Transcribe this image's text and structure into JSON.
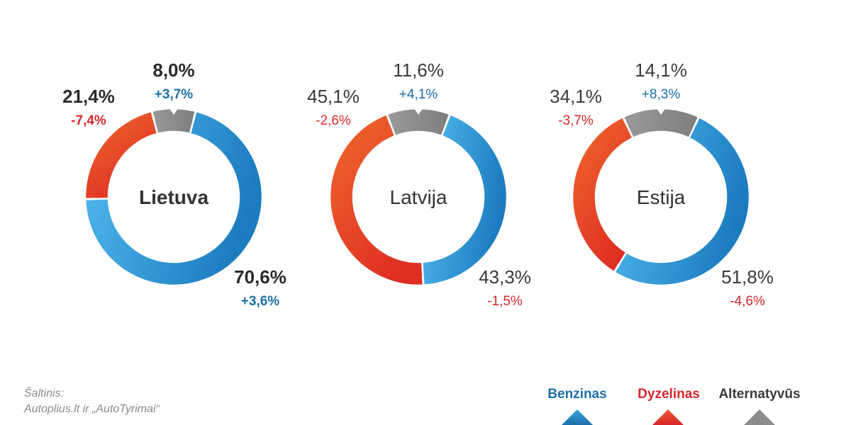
{
  "chart_data": [
    {
      "type": "pie",
      "title": "Lietuva",
      "series": [
        {
          "name": "Benzinas",
          "value": 70.6,
          "label": "70,6%",
          "change": "+3,6%"
        },
        {
          "name": "Dyzelinas",
          "value": 21.4,
          "label": "21,4%",
          "change": "-7,4%"
        },
        {
          "name": "Alternatyvūs",
          "value": 8.0,
          "label": "8,0%",
          "change": "+3,7%"
        }
      ]
    },
    {
      "type": "pie",
      "title": "Latvija",
      "series": [
        {
          "name": "Benzinas",
          "value": 43.3,
          "label": "43,3%",
          "change": "-1,5%"
        },
        {
          "name": "Dyzelinas",
          "value": 45.1,
          "label": "45,1%",
          "change": "-2,6%"
        },
        {
          "name": "Alternatyvūs",
          "value": 11.6,
          "label": "11,6%",
          "change": "+4,1%"
        }
      ]
    },
    {
      "type": "pie",
      "title": "Estija",
      "series": [
        {
          "name": "Benzinas",
          "value": 51.8,
          "label": "51,8%",
          "change": "-4,6%"
        },
        {
          "name": "Dyzelinas",
          "value": 34.1,
          "label": "34,1%",
          "change": "-3,7%"
        },
        {
          "name": "Alternatyvūs",
          "value": 14.1,
          "label": "14,1%",
          "change": "+8,3%"
        }
      ]
    }
  ],
  "colors": {
    "benzinas": "#2386c8",
    "benzinas_light": "#55bdf0",
    "dyzelinas": "#e23a24",
    "dyzelinas_light": "#ed5a2e",
    "alternatyvus": "#8c8c8c",
    "positive_change": "#1b6fa8",
    "negative_change": "#d8262b"
  },
  "legend": [
    {
      "label": "Benzinas",
      "color": "#1b6fa8"
    },
    {
      "label": "Dyzelinas",
      "color": "#d8262b"
    },
    {
      "label": "Alternatyvūs",
      "color": "#3a3a3a"
    }
  ],
  "source": {
    "line1": "Šaltinis:",
    "line2": "Autoplius.lt ir „AutoTyrimai“"
  }
}
